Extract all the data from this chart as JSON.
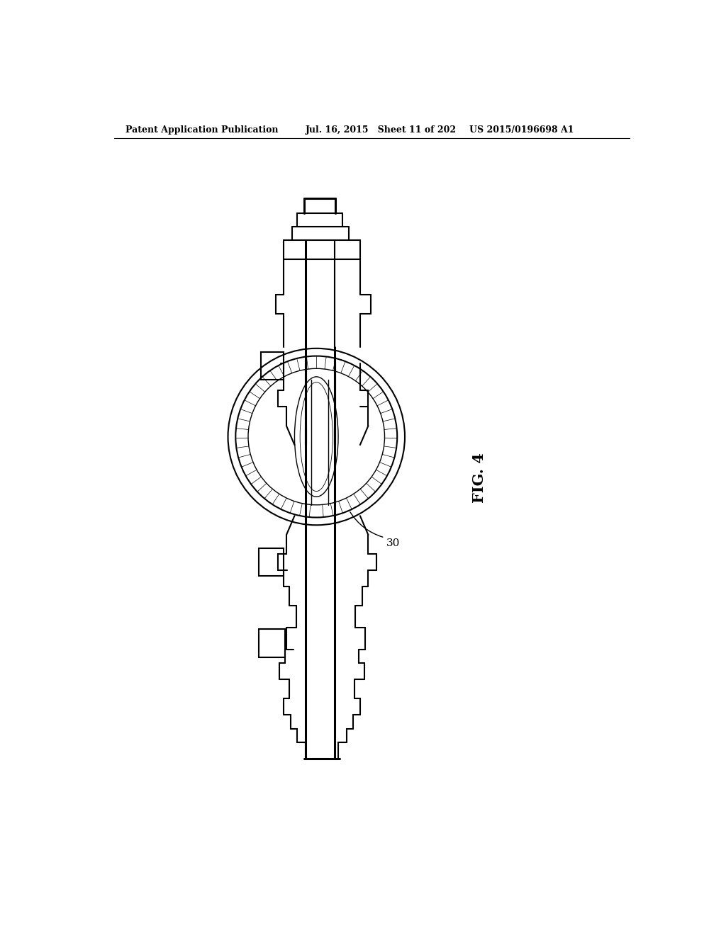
{
  "title_left": "Patent Application Publication",
  "title_mid": "Jul. 16, 2015   Sheet 11 of 202",
  "title_right": "US 2015/0196698 A1",
  "fig_label": "FIG. 4",
  "ref_label": "30",
  "background_color": "#ffffff",
  "line_color": "#000000",
  "header_fontsize": 9,
  "fig_label_fontsize": 15,
  "ref_label_fontsize": 11
}
